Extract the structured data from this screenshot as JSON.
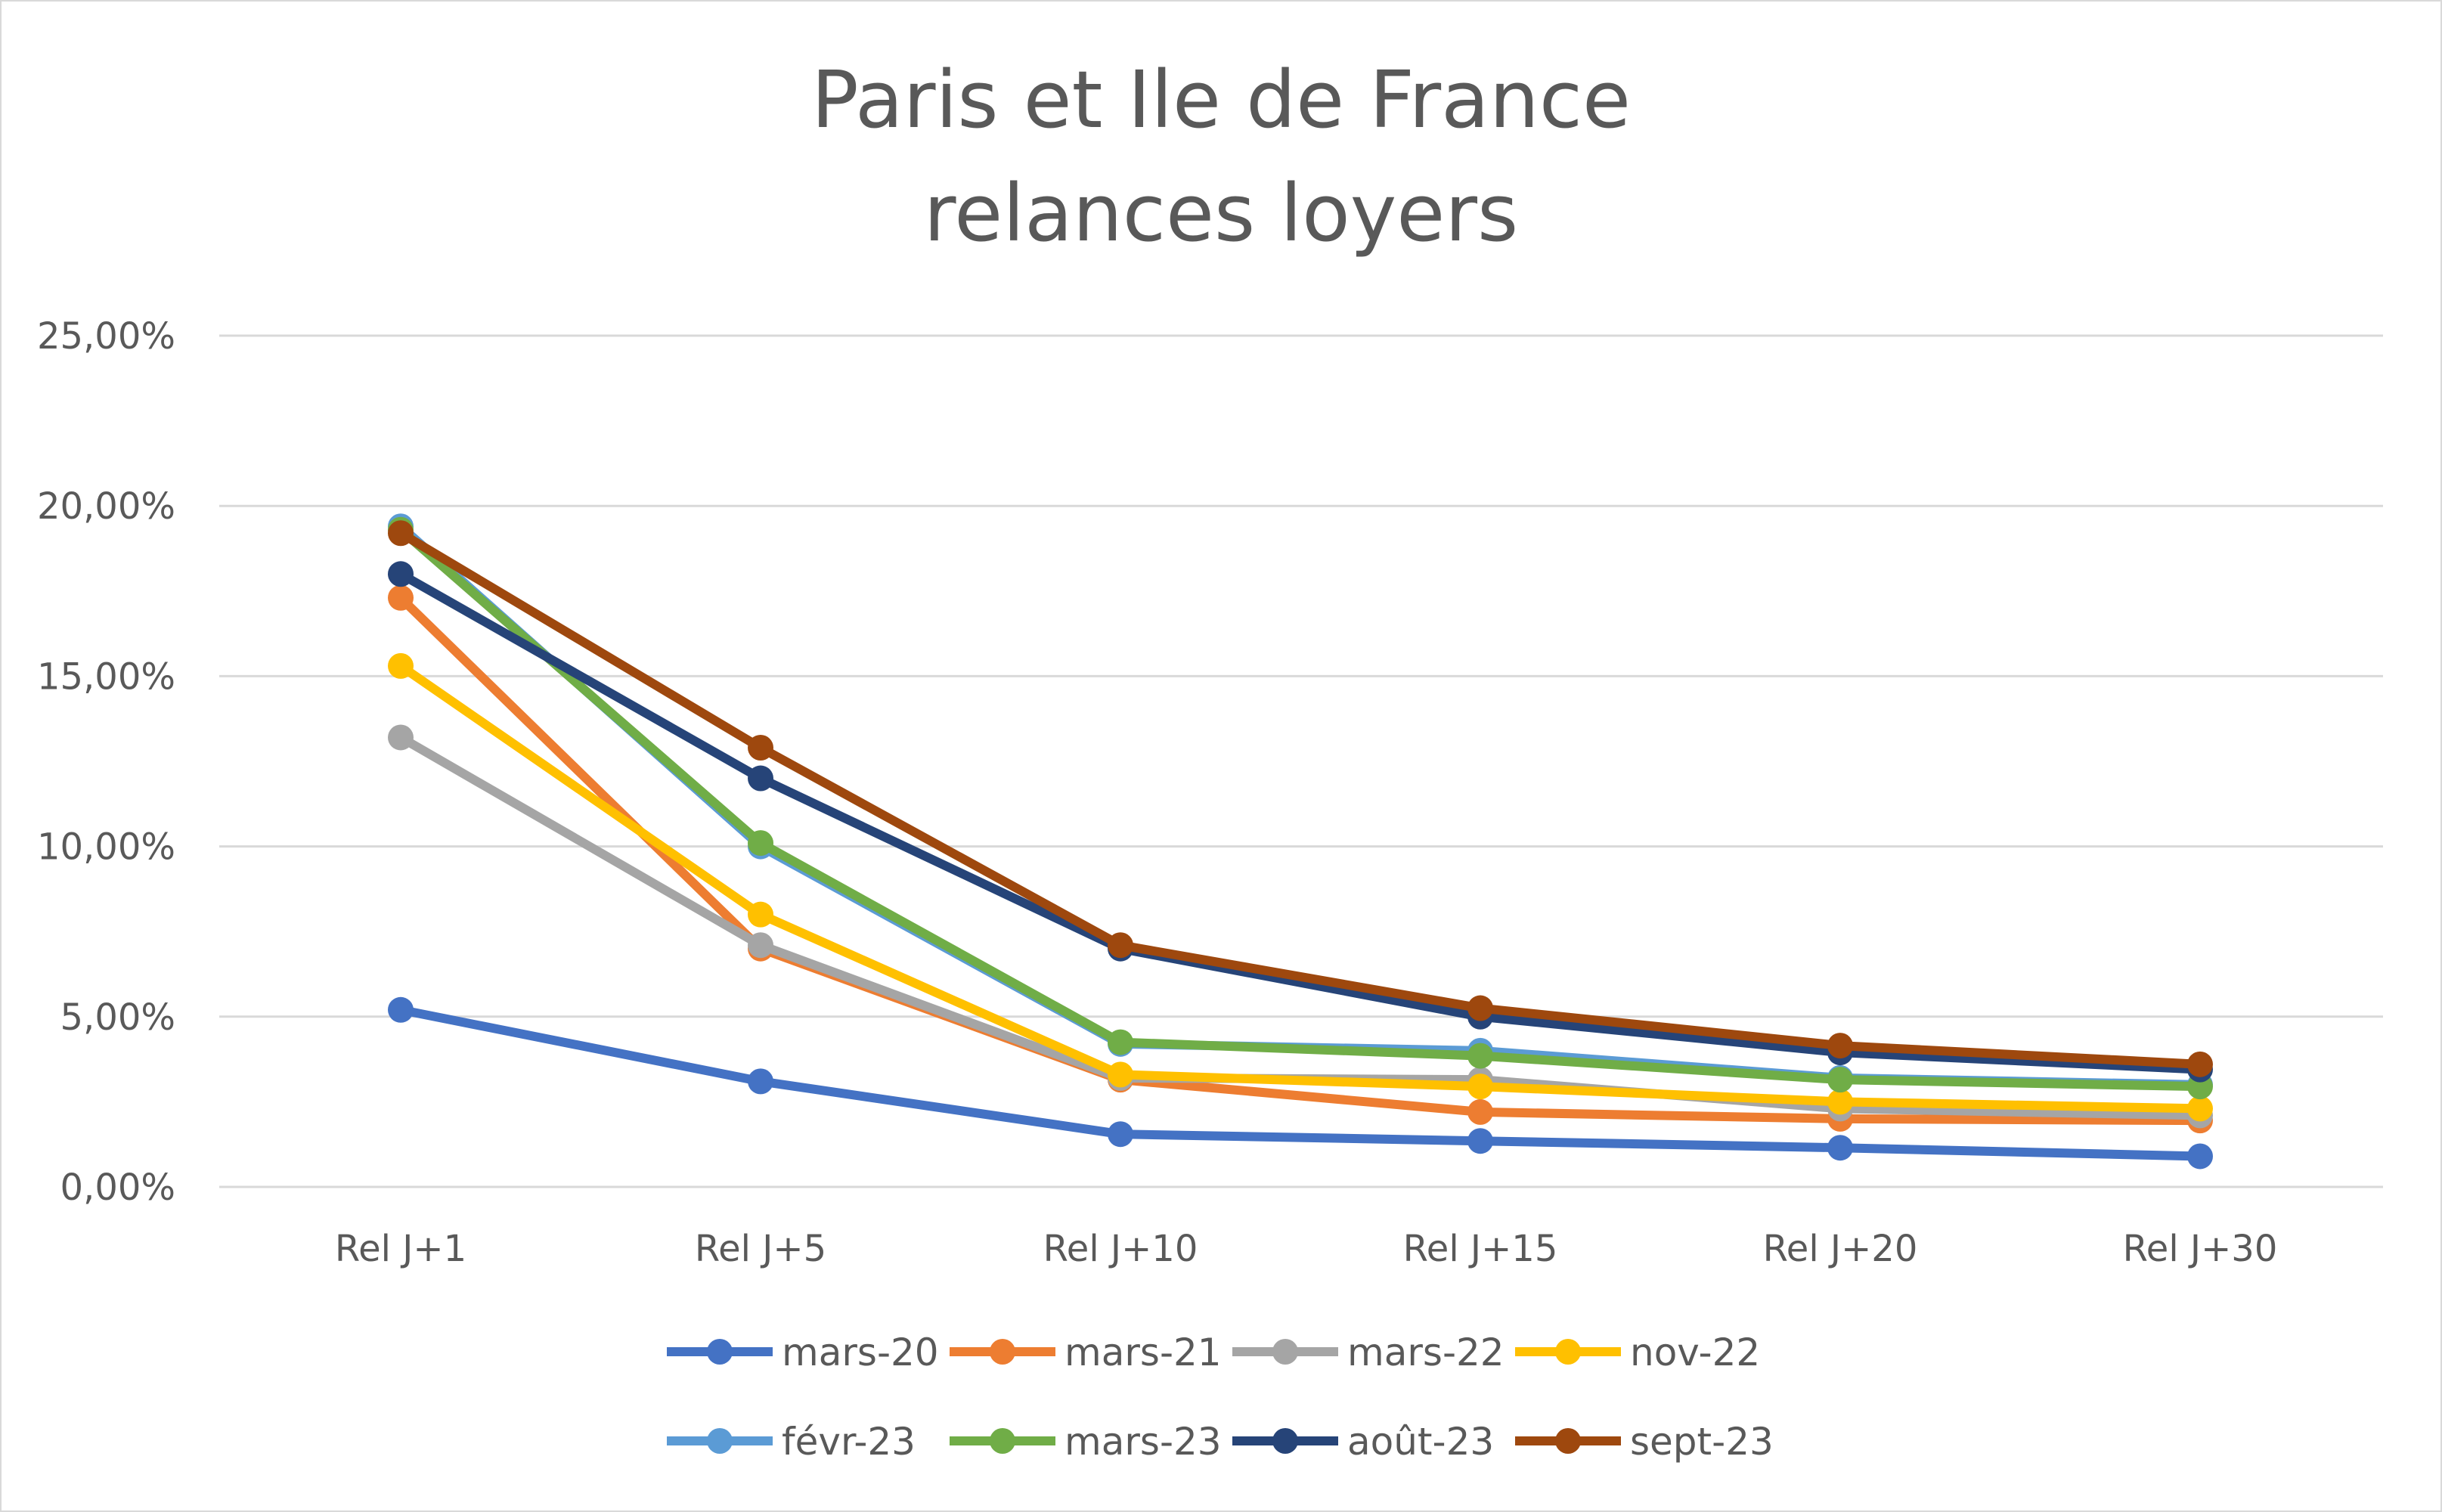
{
  "chart_data": {
    "type": "line",
    "title": [
      "Paris et Ile de France",
      "relances loyers"
    ],
    "xlabel": "",
    "ylabel": "",
    "categories": [
      "Rel J+1",
      "Rel J+5",
      "Rel J+10",
      "Rel J+15",
      "Rel J+20",
      "Rel J+30"
    ],
    "ylim": [
      0,
      25
    ],
    "yticks": [
      0,
      5,
      10,
      15,
      20,
      25
    ],
    "ytick_labels": [
      "0,00%",
      "5,00%",
      "10,00%",
      "15,00%",
      "20,00%",
      "25,00%"
    ],
    "grid": true,
    "legend_position": "bottom",
    "series": [
      {
        "name": "mars-20",
        "color": "#4472C4",
        "values": [
          5.2,
          3.1,
          1.55,
          1.35,
          1.15,
          0.9
        ]
      },
      {
        "name": "mars-21",
        "color": "#ED7D31",
        "values": [
          17.3,
          7.0,
          3.15,
          2.2,
          2.0,
          1.95
        ]
      },
      {
        "name": "mars-22",
        "color": "#A5A5A5",
        "values": [
          13.2,
          7.1,
          3.2,
          3.15,
          2.3,
          2.1
        ]
      },
      {
        "name": "nov-22",
        "color": "#FFC000",
        "values": [
          15.3,
          8.0,
          3.3,
          2.95,
          2.5,
          2.3
        ]
      },
      {
        "name": "févr-23",
        "color": "#5B9BD5",
        "values": [
          19.4,
          10.0,
          4.2,
          4.0,
          3.2,
          3.0
        ]
      },
      {
        "name": "mars-23",
        "color": "#70AD47",
        "values": [
          19.3,
          10.1,
          4.25,
          3.85,
          3.15,
          2.95
        ]
      },
      {
        "name": "août-23",
        "color": "#264478",
        "values": [
          18.0,
          12.0,
          7.0,
          5.0,
          3.95,
          3.45
        ]
      },
      {
        "name": "sept-23",
        "color": "#9E480E",
        "values": [
          19.2,
          12.9,
          7.1,
          5.25,
          4.15,
          3.6
        ]
      }
    ]
  }
}
